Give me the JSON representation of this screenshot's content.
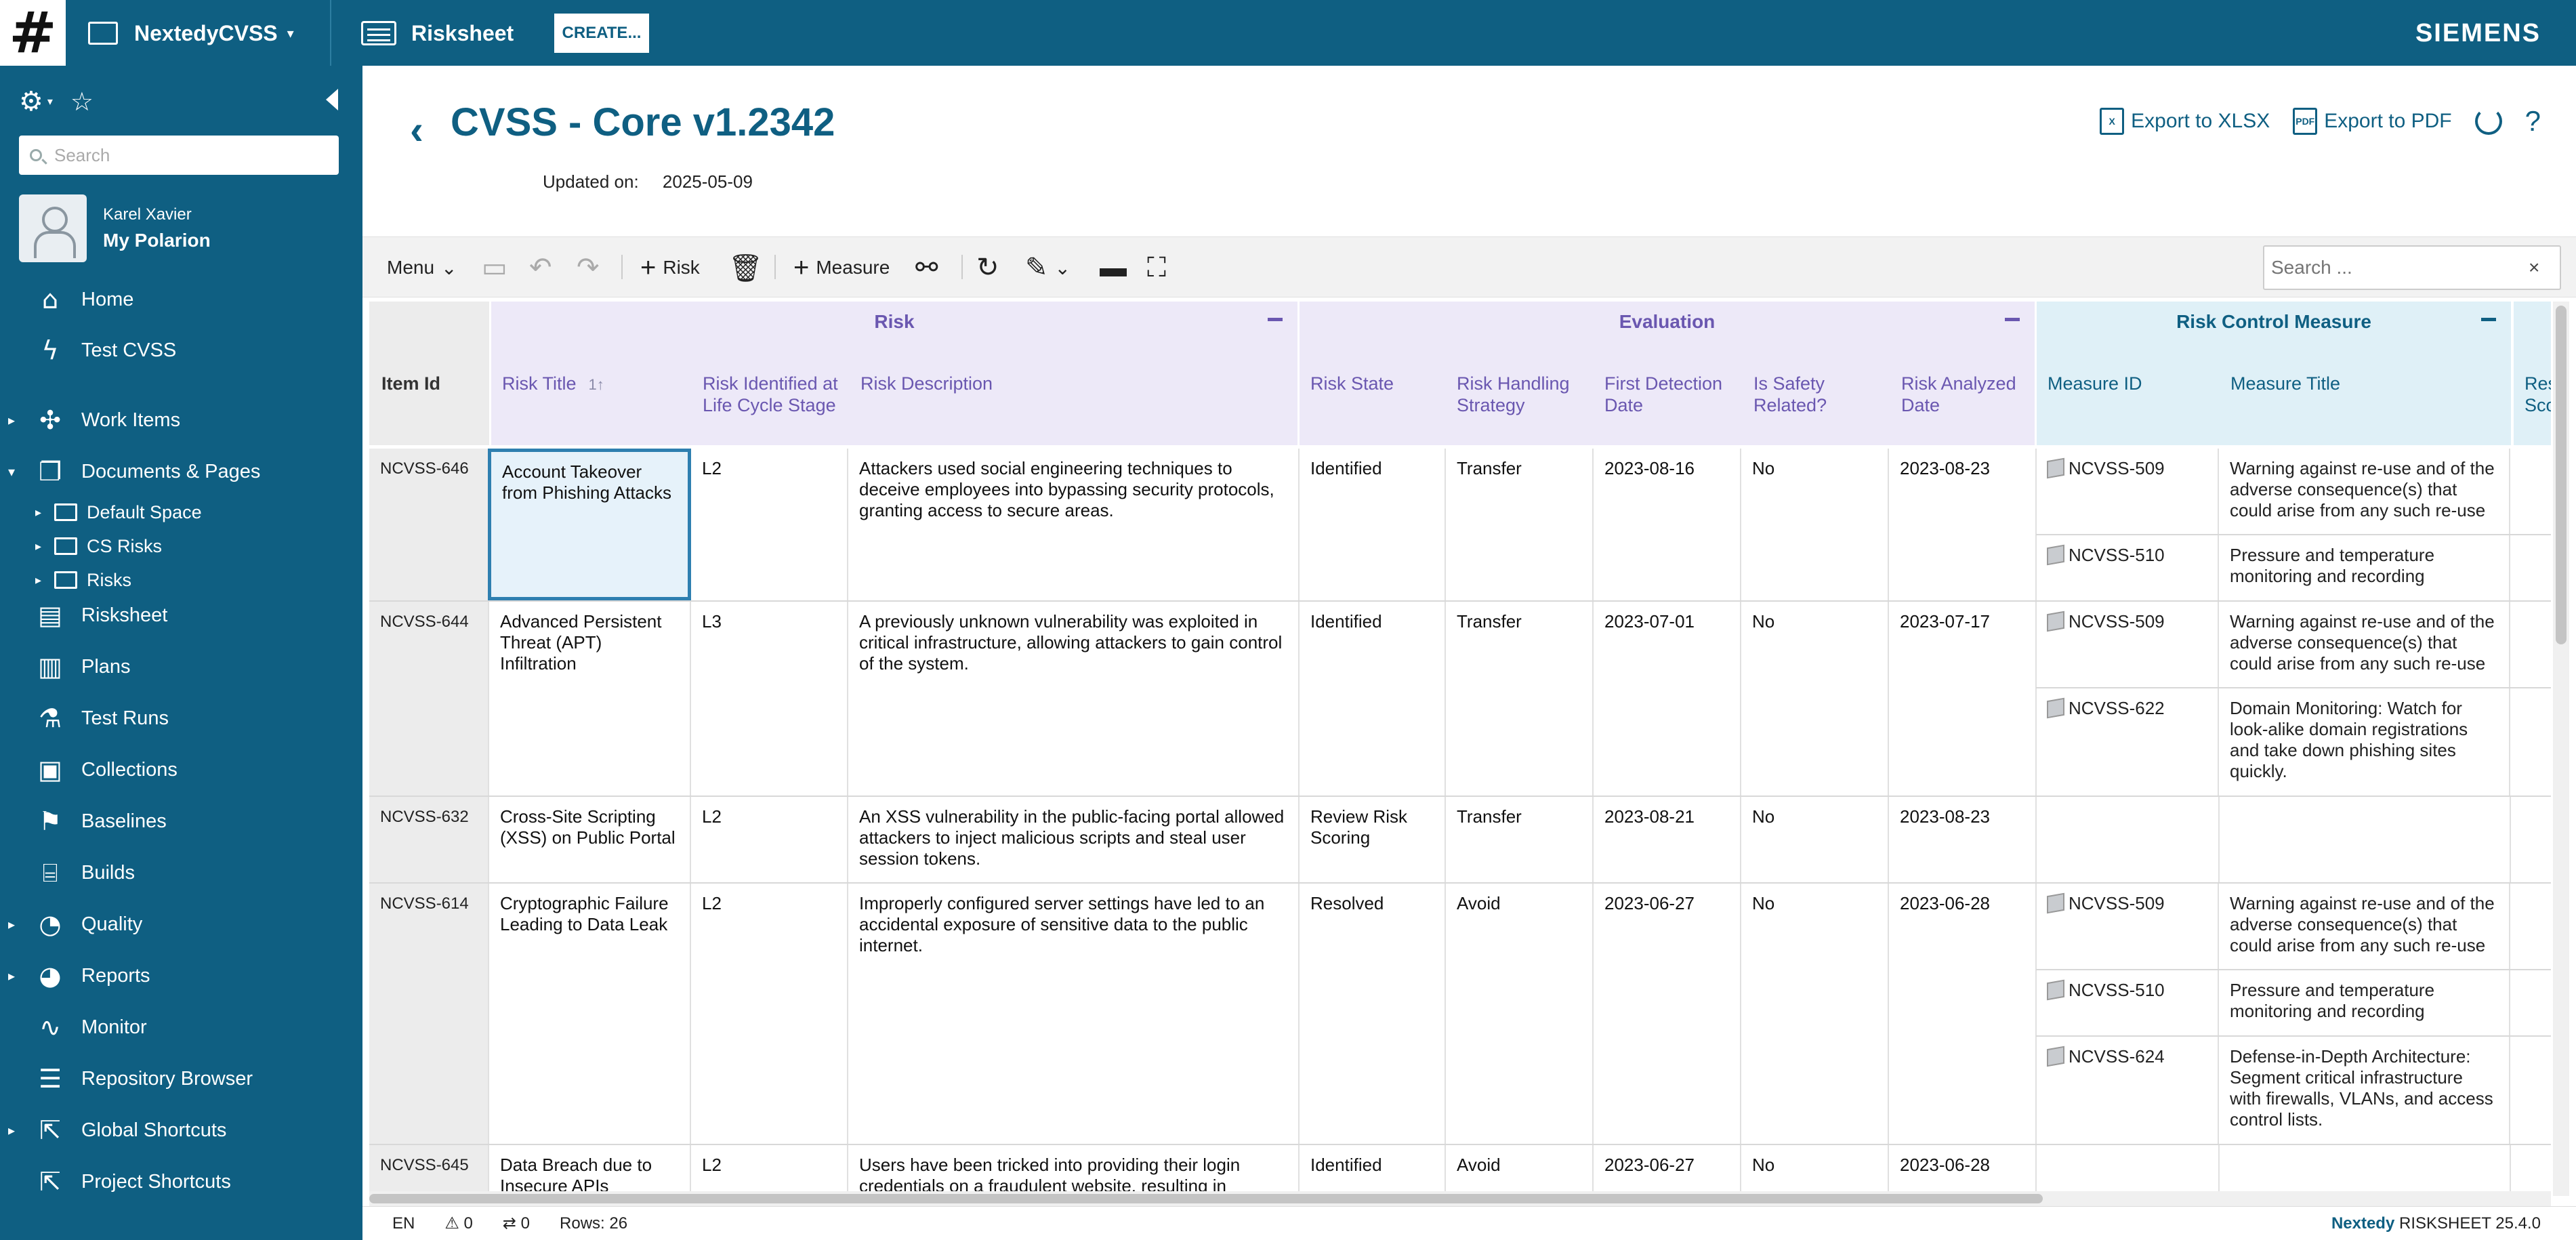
{
  "topbar": {
    "logo": "#",
    "project": "NextedyCVSS",
    "app_tab": "Risksheet",
    "create_label": "CREATE...",
    "brand": "SIEMENS"
  },
  "sidebar": {
    "search_placeholder": "Search",
    "user_name": "Karel Xavier",
    "user_title": "My Polarion",
    "items": [
      {
        "label": "Home",
        "icon": "home-icon"
      },
      {
        "label": "Test CVSS",
        "icon": "lightning-icon"
      },
      {
        "label": "Work Items",
        "icon": "work-items-icon"
      },
      {
        "label": "Documents & Pages",
        "icon": "documents-icon"
      },
      {
        "label": "Risksheet",
        "icon": "risksheet-icon"
      },
      {
        "label": "Plans",
        "icon": "plans-icon"
      },
      {
        "label": "Test Runs",
        "icon": "flask-icon"
      },
      {
        "label": "Collections",
        "icon": "collections-icon"
      },
      {
        "label": "Baselines",
        "icon": "flag-icon"
      },
      {
        "label": "Builds",
        "icon": "builds-icon"
      },
      {
        "label": "Quality",
        "icon": "gauge-icon"
      },
      {
        "label": "Reports",
        "icon": "pie-icon"
      },
      {
        "label": "Monitor",
        "icon": "pulse-icon"
      },
      {
        "label": "Repository Browser",
        "icon": "database-icon"
      },
      {
        "label": "Global Shortcuts",
        "icon": "shortcut-icon"
      },
      {
        "label": "Project Shortcuts",
        "icon": "shortcut-icon"
      }
    ],
    "subitems": [
      {
        "label": "Default Space"
      },
      {
        "label": "CS Risks"
      },
      {
        "label": "Risks"
      }
    ]
  },
  "page": {
    "title": "CVSS - Core v1.2342",
    "updated_label": "Updated on:",
    "updated_value": "2025-05-09",
    "export_xlsx": "Export to XLSX",
    "export_pdf": "Export to PDF",
    "help": "?"
  },
  "toolbar": {
    "menu": "Menu",
    "risk": "Risk",
    "measure": "Measure",
    "search_placeholder": "Search ..."
  },
  "grid": {
    "groups": {
      "risk": "Risk",
      "evaluation": "Evaluation",
      "rcm": "Risk Control Measure"
    },
    "headers": {
      "item_id": "Item Id",
      "risk_title": "Risk Title",
      "risk_stage": "Risk Identified at Life Cycle Stage",
      "risk_desc": "Risk Description",
      "risk_state": "Risk State",
      "handling": "Risk Handling Strategy",
      "first_detection": "First Detection Date",
      "safety": "Is Safety Related?",
      "analyzed": "Risk Analyzed Date",
      "measure_id": "Measure ID",
      "measure_title": "Measure Title",
      "res_score": "Res Sco"
    },
    "rows": [
      {
        "id": "NCVSS-646",
        "title": "Account Takeover from Phishing Attacks",
        "stage": "L2",
        "desc": "Attackers used social engineering techniques to deceive employees into bypassing security protocols, granting access to secure areas.",
        "state": "Identified",
        "handling": "Transfer",
        "first": "2023-08-16",
        "safety": "No",
        "analyzed": "2023-08-23",
        "measures": [
          {
            "id": "NCVSS-509",
            "title": "Warning against re-use and of the adverse consequence(s) that could arise from any such re-use"
          },
          {
            "id": "NCVSS-510",
            "title": "Pressure and temperature monitoring and recording"
          }
        ]
      },
      {
        "id": "NCVSS-644",
        "title": "Advanced Persistent Threat (APT) Infiltration",
        "stage": "L3",
        "desc": "A previously unknown vulnerability was exploited in critical infrastructure, allowing attackers to gain control of the system.",
        "state": "Identified",
        "handling": "Transfer",
        "first": "2023-07-01",
        "safety": "No",
        "analyzed": "2023-07-17",
        "measures": [
          {
            "id": "NCVSS-509",
            "title": "Warning against re-use and of the adverse consequence(s) that could arise from any such re-use"
          },
          {
            "id": "NCVSS-622",
            "title": "Domain Monitoring: Watch for look-alike domain registrations and take down phishing sites quickly."
          }
        ]
      },
      {
        "id": "NCVSS-632",
        "title": "Cross-Site Scripting (XSS) on Public Portal",
        "stage": "L2",
        "desc": "An XSS vulnerability in the public-facing portal allowed attackers to inject malicious scripts and steal user session tokens.",
        "state": "Review Risk Scoring",
        "handling": "Transfer",
        "first": "2023-08-21",
        "safety": "No",
        "analyzed": "2023-08-23",
        "measures": []
      },
      {
        "id": "NCVSS-614",
        "title": "Cryptographic Failure Leading to Data Leak",
        "stage": "L2",
        "desc": "Improperly configured server settings have led to an accidental exposure of sensitive data to the public internet.",
        "state": "Resolved",
        "handling": "Avoid",
        "first": "2023-06-27",
        "safety": "No",
        "analyzed": "2023-06-28",
        "measures": [
          {
            "id": "NCVSS-509",
            "title": "Warning against re-use and of the adverse consequence(s) that could arise from any such re-use"
          },
          {
            "id": "NCVSS-510",
            "title": "Pressure and temperature monitoring and recording"
          },
          {
            "id": "NCVSS-624",
            "title": "Defense-in-Depth Architecture: Segment critical infrastructure with firewalls, VLANs, and access control lists."
          }
        ]
      },
      {
        "id": "NCVSS-645",
        "title": "Data Breach due to Insecure APIs",
        "stage": "L2",
        "desc": "Users have been tricked into providing their login credentials on a fraudulent website, resulting in",
        "state": "Identified",
        "handling": "Avoid",
        "first": "2023-06-27",
        "safety": "No",
        "analyzed": "2023-06-28",
        "measures": []
      }
    ]
  },
  "status": {
    "lang": "EN",
    "warnings": "0",
    "links": "0",
    "rows": "Rows: 26",
    "brand": "Nextedy",
    "product": "RISKSHEET",
    "version": "25.4.0"
  }
}
